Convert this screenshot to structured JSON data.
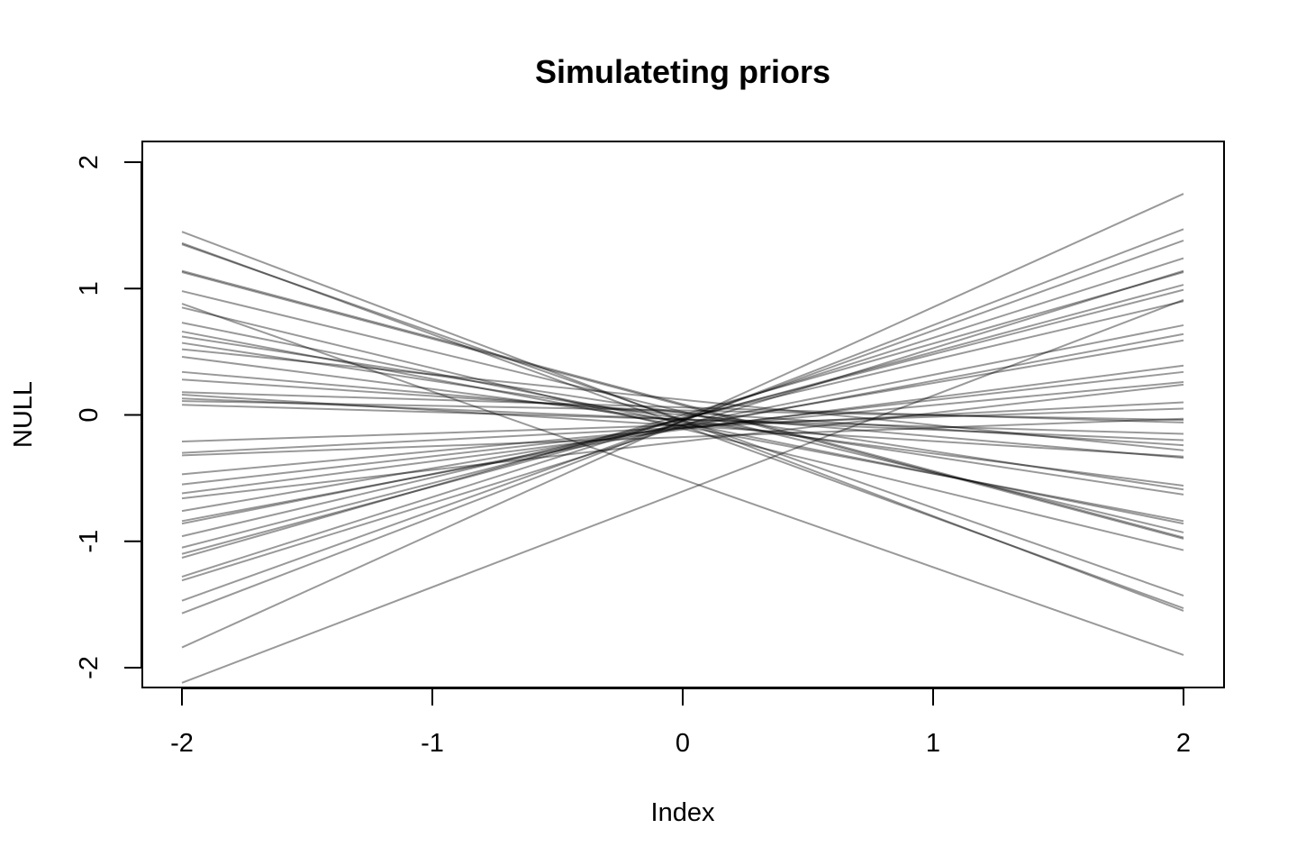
{
  "chart_data": {
    "type": "line",
    "title": "Simulateting priors",
    "xlabel": "Index",
    "ylabel": "NULL",
    "xlim": [
      -2,
      2
    ],
    "ylim": [
      -2,
      2
    ],
    "x_ticks": [
      -2,
      -1,
      0,
      1,
      2
    ],
    "y_ticks": [
      -2,
      -1,
      0,
      1,
      2
    ],
    "grid": false,
    "legend": "none",
    "line_color": "#000000",
    "line_opacity": 0.4,
    "series": [
      {
        "x": [
          -2,
          2
        ],
        "y": [
          1.45,
          -1.55
        ]
      },
      {
        "x": [
          -2,
          2
        ],
        "y": [
          1.36,
          -1.53
        ]
      },
      {
        "x": [
          -2,
          2
        ],
        "y": [
          1.35,
          -1.43
        ]
      },
      {
        "x": [
          -2,
          2
        ],
        "y": [
          1.14,
          -0.97
        ]
      },
      {
        "x": [
          -2,
          2
        ],
        "y": [
          1.13,
          -0.98
        ]
      },
      {
        "x": [
          -2,
          2
        ],
        "y": [
          0.98,
          -0.93
        ]
      },
      {
        "x": [
          -2,
          2
        ],
        "y": [
          0.88,
          -1.9
        ]
      },
      {
        "x": [
          -2,
          2
        ],
        "y": [
          0.85,
          -1.07
        ]
      },
      {
        "x": [
          -2,
          2
        ],
        "y": [
          0.73,
          -0.86
        ]
      },
      {
        "x": [
          -2,
          2
        ],
        "y": [
          0.66,
          -0.84
        ]
      },
      {
        "x": [
          -2,
          2
        ],
        "y": [
          0.62,
          -0.59
        ]
      },
      {
        "x": [
          -2,
          2
        ],
        "y": [
          0.57,
          -0.63
        ]
      },
      {
        "x": [
          -2,
          2
        ],
        "y": [
          0.52,
          -0.28
        ]
      },
      {
        "x": [
          -2,
          2
        ],
        "y": [
          0.46,
          -0.56
        ]
      },
      {
        "x": [
          -2,
          2
        ],
        "y": [
          0.34,
          -0.34
        ]
      },
      {
        "x": [
          -2,
          2
        ],
        "y": [
          0.28,
          -0.24
        ]
      },
      {
        "x": [
          -2,
          2
        ],
        "y": [
          0.18,
          -0.06
        ]
      },
      {
        "x": [
          -2,
          2
        ],
        "y": [
          0.16,
          -0.33
        ]
      },
      {
        "x": [
          -2,
          2
        ],
        "y": [
          0.13,
          -0.2
        ]
      },
      {
        "x": [
          -2,
          2
        ],
        "y": [
          0.11,
          -0.04
        ]
      },
      {
        "x": [
          -2,
          2
        ],
        "y": [
          0.08,
          -0.15
        ]
      },
      {
        "x": [
          -2,
          2
        ],
        "y": [
          -0.21,
          0.05
        ]
      },
      {
        "x": [
          -2,
          2
        ],
        "y": [
          -0.3,
          0.1
        ]
      },
      {
        "x": [
          -2,
          2
        ],
        "y": [
          -0.32,
          -0.03
        ]
      },
      {
        "x": [
          -2,
          2
        ],
        "y": [
          -0.47,
          0.26
        ]
      },
      {
        "x": [
          -2,
          2
        ],
        "y": [
          -0.55,
          0.34
        ]
      },
      {
        "x": [
          -2,
          2
        ],
        "y": [
          -0.62,
          0.39
        ]
      },
      {
        "x": [
          -2,
          2
        ],
        "y": [
          -0.66,
          0.24
        ]
      },
      {
        "x": [
          -2,
          2
        ],
        "y": [
          -0.76,
          0.59
        ]
      },
      {
        "x": [
          -2,
          2
        ],
        "y": [
          -0.84,
          0.64
        ]
      },
      {
        "x": [
          -2,
          2
        ],
        "y": [
          -0.86,
          0.71
        ]
      },
      {
        "x": [
          -2,
          2
        ],
        "y": [
          -0.96,
          0.9
        ]
      },
      {
        "x": [
          -2,
          2
        ],
        "y": [
          -1.05,
          0.99
        ]
      },
      {
        "x": [
          -2,
          2
        ],
        "y": [
          -1.1,
          1.03
        ]
      },
      {
        "x": [
          -2,
          2
        ],
        "y": [
          -1.13,
          1.13
        ]
      },
      {
        "x": [
          -2,
          2
        ],
        "y": [
          -1.28,
          1.24
        ]
      },
      {
        "x": [
          -2,
          2
        ],
        "y": [
          -1.31,
          1.14
        ]
      },
      {
        "x": [
          -2,
          2
        ],
        "y": [
          -1.47,
          1.38
        ]
      },
      {
        "x": [
          -2,
          2
        ],
        "y": [
          -1.57,
          1.47
        ]
      },
      {
        "x": [
          -2,
          2
        ],
        "y": [
          -1.84,
          1.75
        ]
      },
      {
        "x": [
          -2,
          2
        ],
        "y": [
          -2.12,
          0.91
        ]
      }
    ]
  }
}
